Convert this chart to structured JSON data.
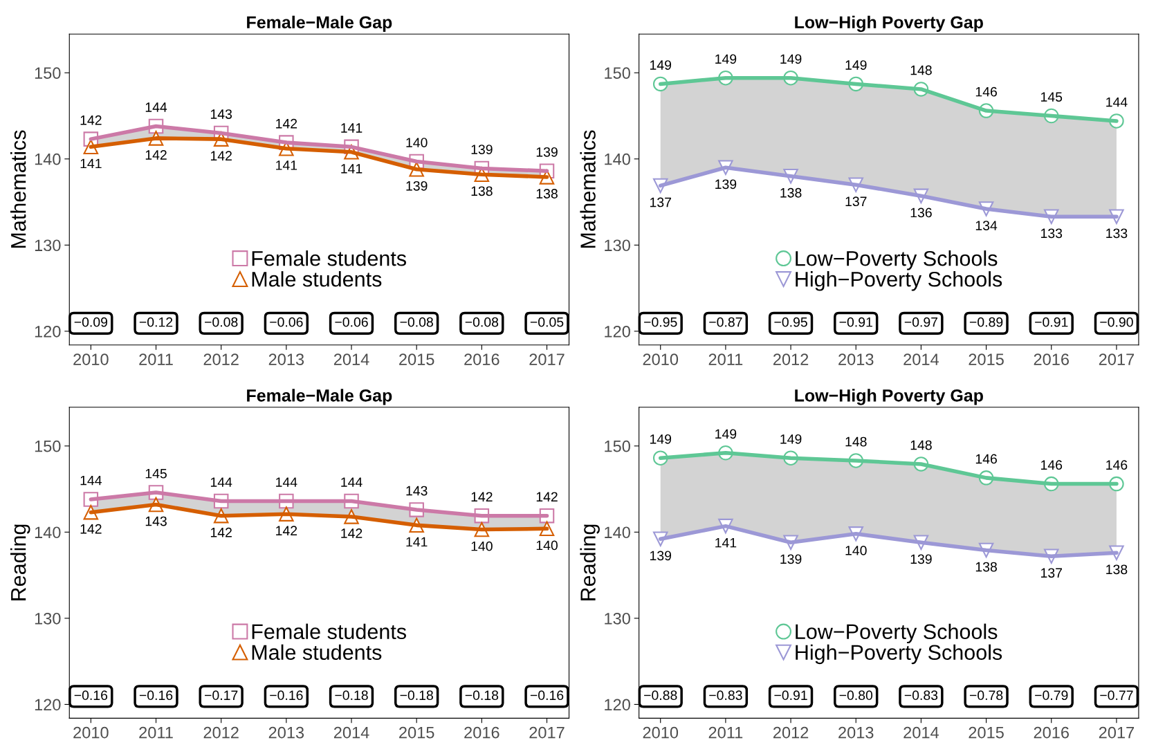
{
  "chart_data": [
    {
      "type": "line",
      "title": "Female−Male Gap",
      "ylabel": "Mathematics",
      "x": [
        2010,
        2011,
        2012,
        2013,
        2014,
        2015,
        2016,
        2017
      ],
      "xlim": [
        2009.67,
        2017.34
      ],
      "xticks": [
        2010,
        2011,
        2012,
        2013,
        2014,
        2015,
        2016,
        2017
      ],
      "ylim": [
        118.4,
        154.5
      ],
      "yticks": [
        120,
        130,
        140,
        150
      ],
      "grid": false,
      "legend": "bottom",
      "series": [
        {
          "name": "Female students",
          "color": "#cc79a7",
          "marker": "square",
          "values": [
            142.3,
            143.8,
            143.0,
            141.9,
            141.4,
            139.7,
            138.9,
            138.6
          ],
          "value_labels": [
            "142",
            "144",
            "143",
            "142",
            "141",
            "140",
            "139",
            "139"
          ],
          "lower": [
            141.4,
            142.4,
            142.3,
            141.2,
            140.8,
            138.8,
            138.2,
            137.9
          ],
          "upper": [
            142.3,
            143.8,
            143.0,
            141.9,
            141.4,
            139.7,
            138.9,
            138.6
          ]
        },
        {
          "name": "Male students",
          "color": "#d55e00",
          "marker": "triangle",
          "values": [
            141.4,
            142.4,
            142.3,
            141.2,
            140.8,
            138.8,
            138.2,
            137.9
          ],
          "value_labels": [
            "141",
            "142",
            "142",
            "141",
            "141",
            "139",
            "138",
            "138"
          ]
        }
      ],
      "annotations": [
        "−0.09",
        "−0.12",
        "−0.08",
        "−0.06",
        "−0.06",
        "−0.08",
        "−0.08",
        "−0.05"
      ]
    },
    {
      "type": "line",
      "title": "Low−High Poverty Gap",
      "ylabel": "Mathematics",
      "x": [
        2010,
        2011,
        2012,
        2013,
        2014,
        2015,
        2016,
        2017
      ],
      "xlim": [
        2009.67,
        2017.34
      ],
      "xticks": [
        2010,
        2011,
        2012,
        2013,
        2014,
        2015,
        2016,
        2017
      ],
      "ylim": [
        118.4,
        154.5
      ],
      "yticks": [
        120,
        130,
        140,
        150
      ],
      "grid": false,
      "legend": "bottom",
      "series": [
        {
          "name": "Low−Poverty Schools",
          "color": "#5ec795",
          "marker": "circle",
          "values": [
            148.7,
            149.4,
            149.4,
            148.7,
            148.1,
            145.6,
            145.0,
            144.4
          ],
          "value_labels": [
            "149",
            "149",
            "149",
            "149",
            "148",
            "146",
            "145",
            "144"
          ],
          "lower": [
            136.9,
            139.0,
            138.0,
            137.0,
            135.7,
            134.2,
            133.3,
            133.3
          ],
          "upper": [
            148.7,
            149.4,
            149.4,
            148.7,
            148.1,
            145.6,
            145.0,
            144.4
          ]
        },
        {
          "name": "High−Poverty Schools",
          "color": "#9c98d6",
          "marker": "triangle_down",
          "values": [
            136.9,
            139.0,
            138.0,
            137.0,
            135.7,
            134.2,
            133.3,
            133.3
          ],
          "value_labels": [
            "137",
            "139",
            "138",
            "137",
            "136",
            "134",
            "133",
            "133"
          ]
        }
      ],
      "annotations": [
        "−0.95",
        "−0.87",
        "−0.95",
        "−0.91",
        "−0.97",
        "−0.89",
        "−0.91",
        "−0.90"
      ]
    },
    {
      "type": "line",
      "title": "Female−Male Gap",
      "ylabel": "Reading",
      "x": [
        2010,
        2011,
        2012,
        2013,
        2014,
        2015,
        2016,
        2017
      ],
      "xlim": [
        2009.67,
        2017.34
      ],
      "xticks": [
        2010,
        2011,
        2012,
        2013,
        2014,
        2015,
        2016,
        2017
      ],
      "ylim": [
        118.4,
        154.5
      ],
      "yticks": [
        120,
        130,
        140,
        150
      ],
      "grid": false,
      "legend": "bottom",
      "series": [
        {
          "name": "Female students",
          "color": "#cc79a7",
          "marker": "square",
          "values": [
            143.8,
            144.6,
            143.6,
            143.6,
            143.6,
            142.6,
            141.9,
            141.9
          ],
          "value_labels": [
            "144",
            "145",
            "144",
            "144",
            "144",
            "143",
            "142",
            "142"
          ],
          "lower": [
            142.3,
            143.2,
            141.9,
            142.1,
            141.8,
            140.8,
            140.3,
            140.4
          ],
          "upper": [
            143.8,
            144.6,
            143.6,
            143.6,
            143.6,
            142.6,
            141.9,
            141.9
          ]
        },
        {
          "name": "Male students",
          "color": "#d55e00",
          "marker": "triangle",
          "values": [
            142.3,
            143.2,
            141.9,
            142.1,
            141.8,
            140.8,
            140.3,
            140.4
          ],
          "value_labels": [
            "142",
            "143",
            "142",
            "142",
            "142",
            "141",
            "140",
            "140"
          ]
        }
      ],
      "annotations": [
        "−0.16",
        "−0.16",
        "−0.17",
        "−0.16",
        "−0.18",
        "−0.18",
        "−0.18",
        "−0.16"
      ]
    },
    {
      "type": "line",
      "title": "Low−High Poverty Gap",
      "ylabel": "Reading",
      "x": [
        2010,
        2011,
        2012,
        2013,
        2014,
        2015,
        2016,
        2017
      ],
      "xlim": [
        2009.67,
        2017.34
      ],
      "xticks": [
        2010,
        2011,
        2012,
        2013,
        2014,
        2015,
        2016,
        2017
      ],
      "ylim": [
        118.4,
        154.5
      ],
      "yticks": [
        120,
        130,
        140,
        150
      ],
      "grid": false,
      "legend": "bottom",
      "series": [
        {
          "name": "Low−Poverty Schools",
          "color": "#5ec795",
          "marker": "circle",
          "values": [
            148.6,
            149.2,
            148.6,
            148.3,
            147.9,
            146.3,
            145.6,
            145.6
          ],
          "value_labels": [
            "149",
            "149",
            "149",
            "148",
            "148",
            "146",
            "146",
            "146"
          ],
          "lower": [
            139.2,
            140.7,
            138.8,
            139.8,
            138.8,
            137.9,
            137.2,
            137.6
          ],
          "upper": [
            148.6,
            149.2,
            148.6,
            148.3,
            147.9,
            146.3,
            145.6,
            145.6
          ]
        },
        {
          "name": "High−Poverty Schools",
          "color": "#9c98d6",
          "marker": "triangle_down",
          "values": [
            139.2,
            140.7,
            138.8,
            139.8,
            138.8,
            137.9,
            137.2,
            137.6
          ],
          "value_labels": [
            "139",
            "141",
            "139",
            "140",
            "139",
            "138",
            "137",
            "138"
          ]
        }
      ],
      "annotations": [
        "−0.88",
        "−0.83",
        "−0.91",
        "−0.80",
        "−0.83",
        "−0.78",
        "−0.79",
        "−0.77"
      ]
    }
  ]
}
